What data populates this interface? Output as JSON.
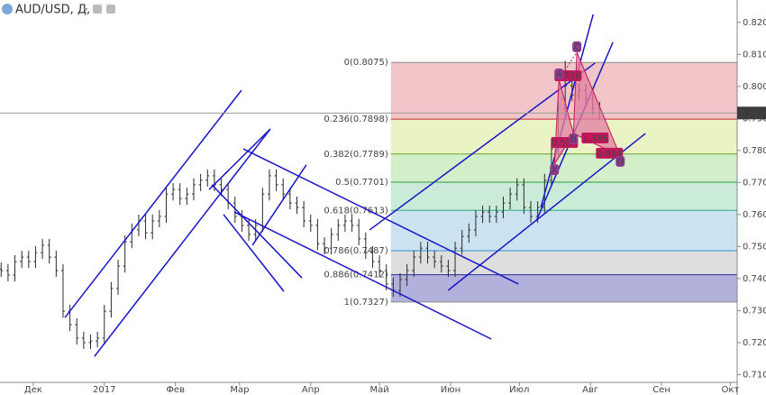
{
  "header": {
    "title": "AUD/USD, Д,"
  },
  "chart_data": {
    "type": "ohlc",
    "color": "#2b2b2b",
    "x": [
      -14,
      -11,
      -8,
      -5,
      -2,
      1,
      4,
      7,
      10,
      13,
      16,
      19,
      22,
      25,
      28,
      31,
      34,
      37,
      40,
      43,
      46,
      49,
      52,
      55,
      58,
      61,
      64,
      67,
      70,
      73,
      76,
      79,
      82,
      85,
      88,
      91,
      94,
      97,
      100,
      103,
      106,
      109,
      112,
      115,
      118,
      121,
      124,
      127,
      130,
      133,
      136,
      139,
      142,
      145,
      148,
      151,
      154,
      157,
      160,
      163,
      166,
      169,
      172,
      175,
      178,
      181,
      184,
      187,
      190,
      193,
      196,
      199,
      202,
      205,
      208,
      211,
      214,
      217,
      220,
      223,
      226,
      229,
      232,
      235,
      238,
      241,
      244,
      247
    ],
    "open": [
      0.743,
      0.7425,
      0.7411,
      0.7453,
      0.7467,
      0.7453,
      0.7481,
      0.7504,
      0.7467,
      0.7425,
      0.7298,
      0.7256,
      0.7214,
      0.72,
      0.7205,
      0.7214,
      0.7298,
      0.7369,
      0.7439,
      0.7515,
      0.7552,
      0.758,
      0.7543,
      0.758,
      0.7594,
      0.7664,
      0.7678,
      0.765,
      0.7664,
      0.7693,
      0.7707,
      0.7721,
      0.7693,
      0.7678,
      0.7636,
      0.7594,
      0.7566,
      0.7538,
      0.7566,
      0.7664,
      0.7721,
      0.7693,
      0.7664,
      0.7636,
      0.7622,
      0.758,
      0.7566,
      0.7509,
      0.7495,
      0.7538,
      0.7566,
      0.758,
      0.7566,
      0.7524,
      0.7481,
      0.7453,
      0.7425,
      0.7383,
      0.7363,
      0.7397,
      0.7425,
      0.7467,
      0.7495,
      0.7467,
      0.7453,
      0.7439,
      0.7425,
      0.7495,
      0.7532,
      0.7552,
      0.7594,
      0.7608,
      0.7594,
      0.7608,
      0.7636,
      0.7664,
      0.7693,
      0.7622,
      0.7594,
      0.7622,
      0.7707,
      0.7805,
      0.7932,
      0.8002,
      0.7974,
      0.7988,
      0.796,
      0.7932
    ],
    "high": [
      0.745,
      0.7445,
      0.7473,
      0.7487,
      0.7487,
      0.7501,
      0.7524,
      0.7524,
      0.7487,
      0.7445,
      0.7318,
      0.7276,
      0.7234,
      0.7225,
      0.7234,
      0.7318,
      0.7389,
      0.7459,
      0.7535,
      0.7572,
      0.76,
      0.76,
      0.76,
      0.7614,
      0.7684,
      0.7698,
      0.7698,
      0.7684,
      0.7713,
      0.7727,
      0.7741,
      0.7741,
      0.7713,
      0.7698,
      0.7656,
      0.7614,
      0.7586,
      0.7586,
      0.7684,
      0.7741,
      0.7741,
      0.7713,
      0.7684,
      0.7656,
      0.7642,
      0.76,
      0.7586,
      0.7529,
      0.7558,
      0.7586,
      0.76,
      0.76,
      0.7586,
      0.7544,
      0.7501,
      0.7473,
      0.7445,
      0.7403,
      0.7417,
      0.7445,
      0.7487,
      0.7515,
      0.7515,
      0.7487,
      0.7473,
      0.7459,
      0.7515,
      0.7552,
      0.7572,
      0.7614,
      0.7628,
      0.7628,
      0.7628,
      0.7656,
      0.7684,
      0.7713,
      0.7713,
      0.7642,
      0.7642,
      0.7727,
      0.7825,
      0.7952,
      0.808,
      0.8022,
      0.8008,
      0.8008,
      0.798,
      0.7952
    ],
    "low": [
      0.7405,
      0.7391,
      0.7391,
      0.7433,
      0.7433,
      0.7433,
      0.7461,
      0.7447,
      0.7405,
      0.7278,
      0.7236,
      0.7194,
      0.718,
      0.718,
      0.7185,
      0.7194,
      0.7278,
      0.7349,
      0.7419,
      0.7495,
      0.7532,
      0.7523,
      0.7523,
      0.756,
      0.7574,
      0.7644,
      0.763,
      0.763,
      0.7644,
      0.7673,
      0.7687,
      0.7673,
      0.7658,
      0.7616,
      0.7574,
      0.7546,
      0.7518,
      0.7518,
      0.7546,
      0.7644,
      0.7673,
      0.7644,
      0.7616,
      0.7602,
      0.756,
      0.7546,
      0.7489,
      0.7475,
      0.7475,
      0.7518,
      0.7546,
      0.7546,
      0.7504,
      0.7461,
      0.7433,
      0.7405,
      0.7363,
      0.7343,
      0.7343,
      0.7377,
      0.7405,
      0.7447,
      0.7447,
      0.7433,
      0.7419,
      0.7405,
      0.7405,
      0.7475,
      0.7512,
      0.7532,
      0.7574,
      0.7574,
      0.7574,
      0.7588,
      0.7616,
      0.7644,
      0.7602,
      0.7574,
      0.7574,
      0.7602,
      0.7687,
      0.7785,
      0.7912,
      0.7954,
      0.7954,
      0.794,
      0.7912,
      0.7897
    ],
    "close": [
      0.7425,
      0.7411,
      0.7453,
      0.7467,
      0.7453,
      0.7481,
      0.7504,
      0.7467,
      0.7425,
      0.7298,
      0.7256,
      0.7214,
      0.72,
      0.7205,
      0.7214,
      0.7298,
      0.7369,
      0.7439,
      0.7515,
      0.7552,
      0.758,
      0.7543,
      0.758,
      0.7594,
      0.7664,
      0.7678,
      0.765,
      0.7664,
      0.7693,
      0.7707,
      0.7721,
      0.7693,
      0.7678,
      0.7636,
      0.7594,
      0.7566,
      0.7538,
      0.7566,
      0.7664,
      0.7721,
      0.7693,
      0.7664,
      0.7636,
      0.7622,
      0.758,
      0.7566,
      0.7509,
      0.7495,
      0.7538,
      0.7566,
      0.758,
      0.7566,
      0.7524,
      0.7481,
      0.7453,
      0.7425,
      0.7383,
      0.7363,
      0.7397,
      0.7425,
      0.7467,
      0.7495,
      0.7467,
      0.7453,
      0.7439,
      0.7425,
      0.7495,
      0.7532,
      0.7552,
      0.7594,
      0.7608,
      0.7594,
      0.7608,
      0.7636,
      0.7664,
      0.7693,
      0.7622,
      0.7594,
      0.7622,
      0.7707,
      0.7805,
      0.7932,
      0.8002,
      0.7974,
      0.7988,
      0.796,
      0.7932,
      0.7917
    ],
    "xlim": [
      -14.5,
      307
    ],
    "ylim": [
      0.7073,
      0.827
    ],
    "xticks": [
      {
        "value": 0,
        "label": "Дек"
      },
      {
        "value": 31,
        "label": "2017"
      },
      {
        "value": 62,
        "label": "Фев"
      },
      {
        "value": 90,
        "label": "Мар"
      },
      {
        "value": 121,
        "label": "Апр"
      },
      {
        "value": 151,
        "label": "Май"
      },
      {
        "value": 182,
        "label": "Июн"
      },
      {
        "value": 212,
        "label": "Июл"
      },
      {
        "value": 243,
        "label": "Авг"
      },
      {
        "value": 274,
        "label": "Сен"
      },
      {
        "value": 304,
        "label": "Окт"
      }
    ],
    "yticks": [
      {
        "value": 0.71,
        "label": "0.7100"
      },
      {
        "value": 0.72,
        "label": "0.7200"
      },
      {
        "value": 0.73,
        "label": "0.7300"
      },
      {
        "value": 0.74,
        "label": "0.7400"
      },
      {
        "value": 0.75,
        "label": "0.7500"
      },
      {
        "value": 0.76,
        "label": "0.7600"
      },
      {
        "value": 0.77,
        "label": "0.7700"
      },
      {
        "value": 0.78,
        "label": "0.7800"
      },
      {
        "value": 0.79,
        "label": "0.7900"
      },
      {
        "value": 0.8,
        "label": "0.8000"
      },
      {
        "value": 0.81,
        "label": "0.8100"
      },
      {
        "value": 0.82,
        "label": "0.8200"
      }
    ],
    "last_price": 0.7917,
    "fibonacci": {
      "start": 156,
      "levels": [
        {
          "label": "0(0.8075)",
          "value": 0.8075,
          "color": "#8a8a8a",
          "fill": "#f2c5c8"
        },
        {
          "label": "0.236(0.7898)",
          "value": 0.7898,
          "color": "#c62828",
          "fill": "#eaf3c4"
        },
        {
          "label": "0.382(0.7789)",
          "value": 0.7789,
          "color": "#6aa52a",
          "fill": "#d2efc9"
        },
        {
          "label": "0.5(0.7701)",
          "value": 0.7701,
          "color": "#2e9e3c",
          "fill": "#c9ebd8"
        },
        {
          "label": "0.618(0.7613)",
          "value": 0.7613,
          "color": "#2fae7e",
          "fill": "#cbe2f1"
        },
        {
          "label": "0.786(0.7487)",
          "value": 0.7487,
          "color": "#2f8fd0",
          "fill": "#dedede"
        },
        {
          "label": "0.886(0.7412)",
          "value": 0.7412,
          "color": "#2a2a9c",
          "fill": "#b1b1dc"
        },
        {
          "label": "1(0.7327)",
          "value": 0.7327,
          "color": "#8a8a8a"
        }
      ]
    },
    "trendline_color": "#1515c8",
    "trendlines": [
      [
        13.8,
        0.7278,
        90.8,
        0.7988
      ],
      [
        26.7,
        0.7157,
        103.4,
        0.7867
      ],
      [
        77.9,
        0.7693,
        117.2,
        0.7402
      ],
      [
        83.0,
        0.76,
        109.3,
        0.736
      ],
      [
        91.6,
        0.7805,
        211.6,
        0.7383
      ],
      [
        87.7,
        0.7608,
        199.8,
        0.7211
      ],
      [
        76.7,
        0.7678,
        103.4,
        0.7867
      ],
      [
        95.6,
        0.7504,
        119.1,
        0.7755
      ],
      [
        146.7,
        0.7552,
        245.0,
        0.8073
      ],
      [
        180.9,
        0.7363,
        267.0,
        0.7853
      ],
      [
        219.4,
        0.758,
        252.8,
        0.8138
      ],
      [
        221.4,
        0.7622,
        244.2,
        0.8225
      ]
    ],
    "pattern": {
      "color": "#c2185b",
      "fill": "#e27ea0",
      "point_color": "#8e3a8e",
      "points": [
        {
          "label": "X",
          "x": 227.3,
          "y": 0.7757
        },
        {
          "label": "A",
          "x": 229.3,
          "y": 0.8022
        },
        {
          "label": "B",
          "x": 235.6,
          "y": 0.7853
        },
        {
          "label": "C",
          "x": 237.1,
          "y": 0.8107
        },
        {
          "label": "D",
          "x": 256,
          "y": 0.7783
        }
      ],
      "ratios": [
        0.726,
        0.554,
        1.346,
        0.884
      ]
    }
  }
}
